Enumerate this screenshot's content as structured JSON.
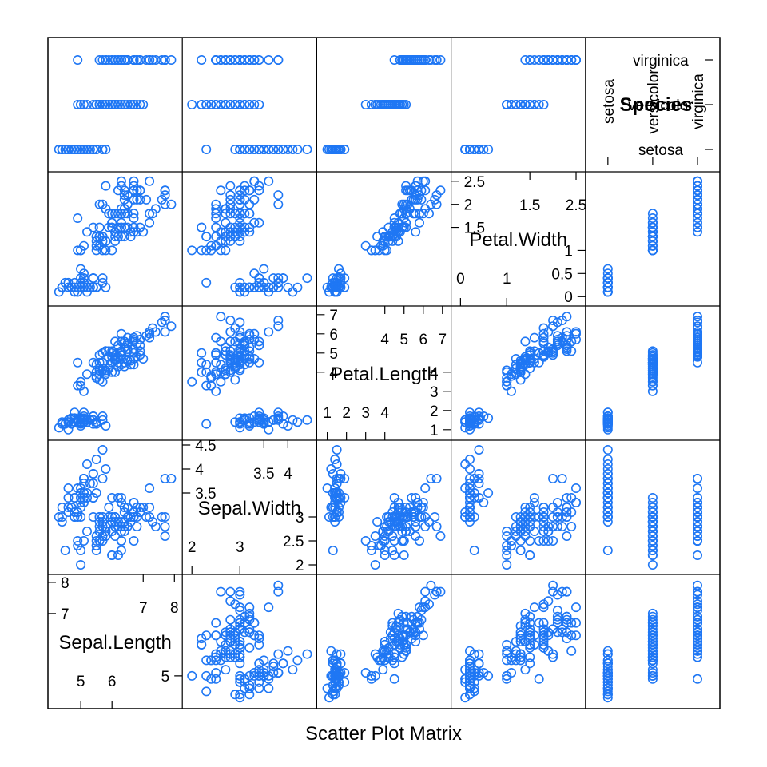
{
  "chart_data": {
    "type": "scatter",
    "xlabel": "Scatter Plot Matrix",
    "point_color": "#1f77f4",
    "variables": [
      {
        "name": "Sepal.Length",
        "kind": "numeric",
        "range": [
          4.1,
          8.1
        ],
        "ticks_upper": [
          7,
          8
        ],
        "ticks_lower": [
          5,
          6
        ],
        "ticks_left": [
          7,
          8
        ],
        "ticks_right": [
          5
        ]
      },
      {
        "name": "Sepal.Width",
        "kind": "numeric",
        "range": [
          1.9,
          4.5
        ],
        "ticks_upper": [
          3.5,
          4.0
        ],
        "ticks_lower": [
          2.0,
          3.0
        ],
        "ticks_left": [
          3.5,
          4.0,
          4.5
        ],
        "ticks_right": [
          2.0,
          2.5,
          3.0
        ]
      },
      {
        "name": "Petal.Length",
        "kind": "numeric",
        "range": [
          0.7,
          7.2
        ],
        "ticks_upper": [
          4,
          5,
          6,
          7
        ],
        "ticks_lower": [
          1,
          2,
          3,
          4
        ],
        "ticks_left": [
          4,
          5,
          6,
          7
        ],
        "ticks_right": [
          1,
          2,
          3,
          4
        ]
      },
      {
        "name": "Petal.Width",
        "kind": "numeric",
        "range": [
          -0.1,
          2.6
        ],
        "ticks_upper": [
          1.5,
          2.5
        ],
        "ticks_lower": [
          0.0,
          1.0
        ],
        "ticks_left": [
          1.5,
          2.0,
          2.5
        ],
        "ticks_right": [
          0.0,
          0.5,
          1.0
        ]
      },
      {
        "name": "Species",
        "kind": "factor",
        "levels": [
          "setosa",
          "versicolor",
          "virginica"
        ]
      }
    ],
    "species": [
      0,
      0,
      0,
      0,
      0,
      0,
      0,
      0,
      0,
      0,
      0,
      0,
      0,
      0,
      0,
      0,
      0,
      0,
      0,
      0,
      0,
      0,
      0,
      0,
      0,
      0,
      0,
      0,
      0,
      0,
      0,
      0,
      0,
      0,
      0,
      0,
      0,
      0,
      0,
      0,
      0,
      0,
      0,
      0,
      0,
      0,
      0,
      0,
      0,
      0,
      1,
      1,
      1,
      1,
      1,
      1,
      1,
      1,
      1,
      1,
      1,
      1,
      1,
      1,
      1,
      1,
      1,
      1,
      1,
      1,
      1,
      1,
      1,
      1,
      1,
      1,
      1,
      1,
      1,
      1,
      1,
      1,
      1,
      1,
      1,
      1,
      1,
      1,
      1,
      1,
      1,
      1,
      1,
      1,
      1,
      1,
      1,
      1,
      1,
      1,
      2,
      2,
      2,
      2,
      2,
      2,
      2,
      2,
      2,
      2,
      2,
      2,
      2,
      2,
      2,
      2,
      2,
      2,
      2,
      2,
      2,
      2,
      2,
      2,
      2,
      2,
      2,
      2,
      2,
      2,
      2,
      2,
      2,
      2,
      2,
      2,
      2,
      2,
      2,
      2,
      2,
      2,
      2,
      2,
      2,
      2,
      2,
      2,
      2,
      2
    ],
    "sepal_length": [
      5.1,
      4.9,
      4.7,
      4.6,
      5.0,
      5.4,
      4.6,
      5.0,
      4.4,
      4.9,
      5.4,
      4.8,
      4.8,
      4.3,
      5.8,
      5.7,
      5.4,
      5.1,
      5.7,
      5.1,
      5.4,
      5.1,
      4.6,
      5.1,
      4.8,
      5.0,
      5.0,
      5.2,
      5.2,
      4.7,
      4.8,
      5.4,
      5.2,
      5.5,
      4.9,
      5.0,
      5.5,
      4.9,
      4.4,
      5.1,
      5.0,
      4.5,
      4.4,
      5.0,
      5.1,
      4.8,
      5.1,
      4.6,
      5.3,
      5.0,
      7.0,
      6.4,
      6.9,
      5.5,
      6.5,
      5.7,
      6.3,
      4.9,
      6.6,
      5.2,
      5.0,
      5.9,
      6.0,
      6.1,
      5.6,
      6.7,
      5.6,
      5.8,
      6.2,
      5.6,
      5.9,
      6.1,
      6.3,
      6.1,
      6.4,
      6.6,
      6.8,
      6.7,
      6.0,
      5.7,
      5.5,
      5.5,
      5.8,
      6.0,
      5.4,
      6.0,
      6.7,
      6.3,
      5.6,
      5.5,
      5.5,
      6.1,
      5.8,
      5.0,
      5.6,
      5.7,
      5.7,
      6.2,
      5.1,
      5.7,
      6.3,
      5.8,
      7.1,
      6.3,
      6.5,
      7.6,
      4.9,
      7.3,
      6.7,
      7.2,
      6.5,
      6.4,
      6.8,
      5.7,
      5.8,
      6.4,
      6.5,
      7.7,
      7.7,
      6.0,
      6.9,
      5.6,
      7.7,
      6.3,
      6.7,
      7.2,
      6.2,
      6.1,
      6.4,
      7.2,
      7.4,
      7.9,
      6.4,
      6.3,
      6.1,
      7.7,
      6.3,
      6.4,
      6.0,
      6.9,
      6.7,
      6.9,
      5.8,
      6.8,
      6.7,
      6.7,
      6.3,
      6.5,
      6.2,
      5.9
    ],
    "sepal_width": [
      3.5,
      3.0,
      3.2,
      3.1,
      3.6,
      3.9,
      3.4,
      3.4,
      2.9,
      3.1,
      3.7,
      3.4,
      3.0,
      3.0,
      4.0,
      4.4,
      3.9,
      3.5,
      3.8,
      3.8,
      3.4,
      3.7,
      3.6,
      3.3,
      3.4,
      3.0,
      3.4,
      3.5,
      3.4,
      3.2,
      3.1,
      3.4,
      4.1,
      4.2,
      3.1,
      3.2,
      3.5,
      3.6,
      3.0,
      3.4,
      3.5,
      2.3,
      3.2,
      3.5,
      3.8,
      3.0,
      3.8,
      3.2,
      3.7,
      3.3,
      3.2,
      3.2,
      3.1,
      2.3,
      2.8,
      2.8,
      3.3,
      2.4,
      2.9,
      2.7,
      2.0,
      3.0,
      2.2,
      2.9,
      2.9,
      3.1,
      3.0,
      2.7,
      2.2,
      2.5,
      3.2,
      2.8,
      2.5,
      2.8,
      2.9,
      3.0,
      2.8,
      3.0,
      2.9,
      2.6,
      2.4,
      2.4,
      2.7,
      2.7,
      3.0,
      3.4,
      3.1,
      2.3,
      3.0,
      2.5,
      2.6,
      3.0,
      2.6,
      2.3,
      2.7,
      3.0,
      2.9,
      2.9,
      2.5,
      2.8,
      3.3,
      2.7,
      3.0,
      2.9,
      3.0,
      3.0,
      2.5,
      2.9,
      2.5,
      3.6,
      3.2,
      2.7,
      3.0,
      2.5,
      2.8,
      3.2,
      3.0,
      3.8,
      2.6,
      2.2,
      3.2,
      2.8,
      2.8,
      2.7,
      3.3,
      3.2,
      2.8,
      3.0,
      2.8,
      3.0,
      2.8,
      3.8,
      2.8,
      2.8,
      2.6,
      3.0,
      3.4,
      3.1,
      3.0,
      3.1,
      3.1,
      3.1,
      2.7,
      3.2,
      3.3,
      3.0,
      2.5,
      3.0,
      3.4,
      3.0
    ],
    "petal_length": [
      1.4,
      1.4,
      1.3,
      1.5,
      1.4,
      1.7,
      1.4,
      1.5,
      1.4,
      1.5,
      1.5,
      1.6,
      1.4,
      1.1,
      1.2,
      1.5,
      1.3,
      1.4,
      1.7,
      1.5,
      1.7,
      1.5,
      1.0,
      1.7,
      1.9,
      1.6,
      1.6,
      1.5,
      1.4,
      1.6,
      1.6,
      1.5,
      1.5,
      1.4,
      1.5,
      1.2,
      1.3,
      1.4,
      1.3,
      1.5,
      1.3,
      1.3,
      1.3,
      1.6,
      1.9,
      1.4,
      1.6,
      1.4,
      1.5,
      1.4,
      4.7,
      4.5,
      4.9,
      4.0,
      4.6,
      4.5,
      4.7,
      3.3,
      4.6,
      3.9,
      3.5,
      4.2,
      4.0,
      4.7,
      3.6,
      4.4,
      4.5,
      4.1,
      4.5,
      3.9,
      4.8,
      4.0,
      4.9,
      4.7,
      4.3,
      4.4,
      4.8,
      5.0,
      4.5,
      3.5,
      3.8,
      3.7,
      3.9,
      5.1,
      4.5,
      4.5,
      4.7,
      4.4,
      4.1,
      4.0,
      4.4,
      4.6,
      4.0,
      3.3,
      4.2,
      4.2,
      4.2,
      4.3,
      3.0,
      4.1,
      6.0,
      5.1,
      5.9,
      5.6,
      5.8,
      6.6,
      4.5,
      6.3,
      5.8,
      6.1,
      5.1,
      5.3,
      5.5,
      5.0,
      5.1,
      5.3,
      5.5,
      6.7,
      6.9,
      5.0,
      5.7,
      4.9,
      6.7,
      4.9,
      5.7,
      6.0,
      4.8,
      4.9,
      5.6,
      5.8,
      6.1,
      6.4,
      5.6,
      5.1,
      5.6,
      6.1,
      5.6,
      5.5,
      4.8,
      5.4,
      5.6,
      5.1,
      5.1,
      5.9,
      5.7,
      5.2,
      5.0,
      5.2,
      5.4,
      5.1
    ],
    "petal_width": [
      0.2,
      0.2,
      0.2,
      0.2,
      0.2,
      0.4,
      0.3,
      0.2,
      0.2,
      0.1,
      0.2,
      0.2,
      0.1,
      0.1,
      0.2,
      0.4,
      0.4,
      0.3,
      0.3,
      0.3,
      0.2,
      0.4,
      0.2,
      0.5,
      0.2,
      0.2,
      0.4,
      0.2,
      0.2,
      0.2,
      0.2,
      0.4,
      0.1,
      0.2,
      0.2,
      0.2,
      0.2,
      0.1,
      0.2,
      0.2,
      0.3,
      0.3,
      0.2,
      0.6,
      0.4,
      0.3,
      0.2,
      0.2,
      0.2,
      0.2,
      1.4,
      1.5,
      1.5,
      1.3,
      1.5,
      1.3,
      1.6,
      1.0,
      1.3,
      1.4,
      1.0,
      1.5,
      1.0,
      1.4,
      1.3,
      1.4,
      1.5,
      1.0,
      1.5,
      1.1,
      1.8,
      1.3,
      1.5,
      1.2,
      1.3,
      1.4,
      1.4,
      1.7,
      1.5,
      1.0,
      1.1,
      1.0,
      1.2,
      1.6,
      1.5,
      1.6,
      1.5,
      1.3,
      1.3,
      1.3,
      1.2,
      1.4,
      1.2,
      1.0,
      1.3,
      1.2,
      1.3,
      1.3,
      1.1,
      1.3,
      2.5,
      1.9,
      2.1,
      1.8,
      2.2,
      2.1,
      1.7,
      1.8,
      1.8,
      2.5,
      2.0,
      1.9,
      2.1,
      2.0,
      2.4,
      2.3,
      1.8,
      2.2,
      2.3,
      1.5,
      2.3,
      2.0,
      2.0,
      1.8,
      2.1,
      1.8,
      1.8,
      1.8,
      2.1,
      1.6,
      1.9,
      2.0,
      2.2,
      1.5,
      1.4,
      2.3,
      2.4,
      1.8,
      1.8,
      2.1,
      2.4,
      2.3,
      1.9,
      2.3,
      2.5,
      2.3,
      1.9,
      2.0,
      2.3,
      1.8
    ]
  }
}
